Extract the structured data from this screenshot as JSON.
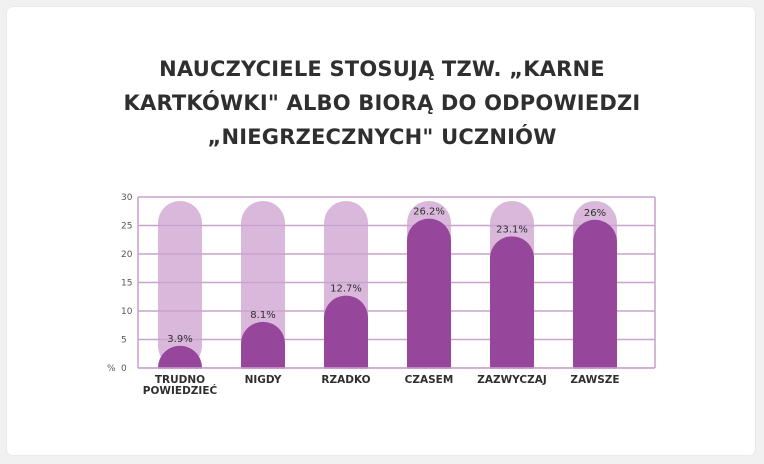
{
  "chart_data": {
    "type": "bar",
    "title_lines": [
      "NAUCZYCIELE STOSUJĄ TZW. „KARNE",
      "KARTKÓWKI\" ALBO BIORĄ DO ODPOWIEDZI",
      "„NIEGRZECZNYCH\" UCZNIÓW"
    ],
    "categories": [
      [
        "TRUDNO",
        "POWIEDZIEĆ"
      ],
      [
        "NIGDY"
      ],
      [
        "RZADKO"
      ],
      [
        "CZASEM"
      ],
      [
        "ZAZWYCZAJ"
      ],
      [
        "ZAWSZE"
      ]
    ],
    "values": [
      3.9,
      8.1,
      12.7,
      26.2,
      23.1,
      26
    ],
    "value_labels": [
      "3.9%",
      "8.1%",
      "12.7%",
      "26.2%",
      "23.1%",
      "26%"
    ],
    "ylabel": "%",
    "ylim": [
      0,
      30
    ],
    "yticks": [
      0,
      5,
      10,
      15,
      20,
      25,
      30
    ],
    "grid": true,
    "colors": {
      "bar": "#96479b",
      "track": "#dab8dc",
      "grid": "#c9a3cc"
    }
  }
}
